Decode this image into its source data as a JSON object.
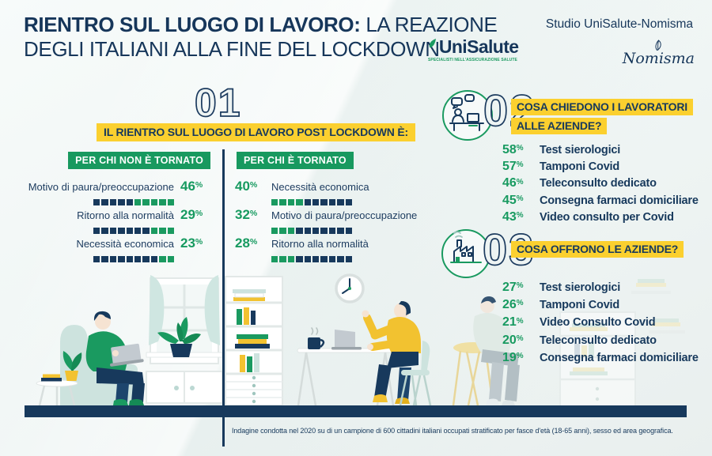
{
  "header": {
    "title_line1_bold": "RIENTRO SUL LUOGO DI LAVORO:",
    "title_line1_light": "LA REAZIONE",
    "title_line2": "DEGLI ITALIANI ALLA FINE DEL LOCKDOWN",
    "study_label": "Studio UniSalute-Nomisma",
    "unisalute_name": "UniSalute",
    "unisalute_tagline": "SPECIALISTI NELL'ASSICURAZIONE SALUTE",
    "nomisma_name": "Nomisma"
  },
  "percent_sign": "%",
  "section1": {
    "number": "01",
    "heading": "IL RIENTRO SUL LUOGO DI LAVORO POST LOCKDOWN È:",
    "not_returned": {
      "badge": "PER CHI NON È TORNATO",
      "items": [
        {
          "label": "Motivo di paura/preoccupazione",
          "value": "46",
          "green_blocks": 5
        },
        {
          "label": "Ritorno alla normalità",
          "value": "29",
          "green_blocks": 3
        },
        {
          "label": "Necessità economica",
          "value": "23",
          "green_blocks": 2
        }
      ]
    },
    "returned": {
      "badge": "PER CHI È TORNATO",
      "items": [
        {
          "label": "Necessità economica",
          "value": "40",
          "green_blocks": 4
        },
        {
          "label": "Motivo di paura/preoccupazione",
          "value": "32",
          "green_blocks": 3
        },
        {
          "label": "Ritorno alla normalità",
          "value": "28",
          "green_blocks": 3
        }
      ]
    }
  },
  "section2": {
    "number": "02",
    "icon": "workers-chat-icon",
    "heading_line1": "COSA CHIEDONO I LAVORATORI",
    "heading_line2": "ALLE AZIENDE?",
    "items": [
      {
        "value": "58",
        "label": "Test sierologici"
      },
      {
        "value": "57",
        "label": "Tamponi Covid"
      },
      {
        "value": "46",
        "label": "Teleconsulto dedicato"
      },
      {
        "value": "45",
        "label": "Consegna farmaci domiciliare"
      },
      {
        "value": "43",
        "label": "Video consulto per Covid"
      }
    ]
  },
  "section3": {
    "number": "03",
    "icon": "factory-icon",
    "heading": "COSA OFFRONO LE AZIENDE?",
    "items": [
      {
        "value": "27",
        "label": "Test sierologici"
      },
      {
        "value": "26",
        "label": "Tamponi Covid"
      },
      {
        "value": "21",
        "label": "Video Consulto Covid"
      },
      {
        "value": "20",
        "label": "Teleconsulto dedicato"
      },
      {
        "value": "19",
        "label": "Consegna farmaci domiciliare"
      }
    ]
  },
  "footer": {
    "note": "Indagine condotta nel 2020 su di un campione di 600 cittadini italiani occupati stratificato per fasce d'età (18-65 anni), sesso ed area geografica."
  },
  "colors": {
    "navy": "#17395c",
    "green": "#1a9a60",
    "yellow": "#fbd02f",
    "teal_light": "#cde3de",
    "background": "#f1f6f5"
  },
  "chart_data": [
    {
      "type": "bar",
      "title": "IL RIENTRO SUL LUOGO DI LAVORO POST LOCKDOWN È: PER CHI NON È TORNATO",
      "categories": [
        "Motivo di paura/preoccupazione",
        "Ritorno alla normalità",
        "Necessità economica"
      ],
      "values": [
        46,
        29,
        23
      ],
      "unit": "%",
      "xlabel": "",
      "ylabel": "",
      "ylim": [
        0,
        100
      ]
    },
    {
      "type": "bar",
      "title": "IL RIENTRO SUL LUOGO DI LAVORO POST LOCKDOWN È: PER CHI È TORNATO",
      "categories": [
        "Necessità economica",
        "Motivo di paura/preoccupazione",
        "Ritorno alla normalità"
      ],
      "values": [
        40,
        32,
        28
      ],
      "unit": "%",
      "xlabel": "",
      "ylabel": "",
      "ylim": [
        0,
        100
      ]
    },
    {
      "type": "bar",
      "title": "COSA CHIEDONO I LAVORATORI ALLE AZIENDE?",
      "categories": [
        "Test sierologici",
        "Tamponi Covid",
        "Teleconsulto dedicato",
        "Consegna farmaci domiciliare",
        "Video consulto per Covid"
      ],
      "values": [
        58,
        57,
        46,
        45,
        43
      ],
      "unit": "%",
      "xlabel": "",
      "ylabel": "",
      "ylim": [
        0,
        100
      ]
    },
    {
      "type": "bar",
      "title": "COSA OFFRONO LE AZIENDE?",
      "categories": [
        "Test sierologici",
        "Tamponi Covid",
        "Video Consulto Covid",
        "Teleconsulto dedicato",
        "Consegna farmaci domiciliare"
      ],
      "values": [
        27,
        26,
        21,
        20,
        19
      ],
      "unit": "%",
      "xlabel": "",
      "ylabel": "",
      "ylim": [
        0,
        100
      ]
    }
  ]
}
